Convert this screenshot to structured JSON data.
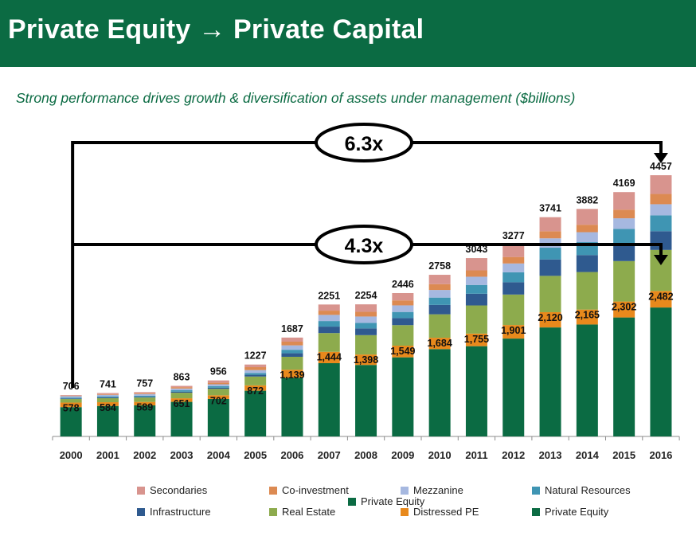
{
  "header": {
    "title": "Private Equity → Private Capital"
  },
  "subtitle": "Strong performance drives growth & diversification of assets under management ($billions)",
  "chart_data": {
    "type": "bar",
    "stacked": true,
    "categories": [
      "2000",
      "2001",
      "2002",
      "2003",
      "2004",
      "2005",
      "2006",
      "2007",
      "2008",
      "2009",
      "2010",
      "2011",
      "2012",
      "2013",
      "2014",
      "2015",
      "2016"
    ],
    "totals": [
      706,
      741,
      757,
      863,
      956,
      1227,
      1687,
      2251,
      2254,
      2446,
      2758,
      3043,
      3277,
      3741,
      3882,
      4169,
      4457
    ],
    "total_labels": [
      "706",
      "741",
      "757",
      "863",
      "956",
      "1227",
      "1687",
      "2251",
      "2254",
      "2446",
      "2758",
      "3043",
      "3277",
      "3741",
      "3882",
      "4169",
      "4457"
    ],
    "pe_labels": [
      "578",
      "584",
      "589",
      "651",
      "702",
      "872",
      "1,139",
      "1,444",
      "1,398",
      "1,549",
      "1,684",
      "1,755",
      "1,901",
      "2,120",
      "2,165",
      "2,302",
      "2,482"
    ],
    "series": [
      {
        "name": "Private Equity",
        "color": "#0b6b43",
        "values": [
          500,
          520,
          530,
          590,
          640,
          780,
          1000,
          1250,
          1220,
          1350,
          1490,
          1540,
          1670,
          1860,
          1910,
          2030,
          2200
        ]
      },
      {
        "name": "Distressed PE",
        "color": "#e8891c",
        "values": [
          78,
          64,
          59,
          61,
          62,
          92,
          139,
          194,
          178,
          199,
          194,
          215,
          231,
          260,
          255,
          272,
          282
        ]
      },
      {
        "name": "Real Estate",
        "color": "#8dab4d",
        "values": [
          60,
          70,
          75,
          95,
          110,
          150,
          220,
          320,
          330,
          350,
          400,
          480,
          520,
          620,
          640,
          690,
          700
        ]
      },
      {
        "name": "Infrastructure",
        "color": "#2f5a8f",
        "values": [
          10,
          12,
          12,
          18,
          20,
          30,
          60,
          110,
          115,
          120,
          160,
          200,
          210,
          280,
          290,
          300,
          320
        ]
      },
      {
        "name": "Natural Resources",
        "color": "#3f95b3",
        "values": [
          15,
          18,
          20,
          24,
          26,
          30,
          60,
          95,
          95,
          105,
          125,
          150,
          170,
          200,
          220,
          250,
          270
        ]
      },
      {
        "name": "Mezzanine",
        "color": "#a6b8e0",
        "values": [
          25,
          26,
          27,
          30,
          32,
          50,
          75,
          105,
          108,
          112,
          130,
          140,
          150,
          160,
          170,
          180,
          190
        ]
      },
      {
        "name": "Co-investment",
        "color": "#dc8a52",
        "values": [
          8,
          12,
          14,
          22,
          26,
          50,
          63,
          72,
          80,
          85,
          99,
          108,
          111,
          121,
          127,
          147,
          175
        ]
      },
      {
        "name": "Secondaries",
        "color": "#d8948e",
        "values": [
          10,
          19,
          20,
          23,
          40,
          45,
          70,
          105,
          128,
          125,
          160,
          210,
          215,
          240,
          270,
          300,
          320
        ]
      }
    ],
    "legend_extra": "Private Equity",
    "ylim": [
      0,
      4800
    ],
    "annotations": [
      {
        "label": "6.3x",
        "from": "2000",
        "to": "2016"
      },
      {
        "label": "4.3x",
        "from": "2000",
        "to": "2016"
      }
    ]
  },
  "legend": {
    "items": [
      {
        "name": "Secondaries",
        "color": "#d8948e"
      },
      {
        "name": "Co-investment",
        "color": "#dc8a52"
      },
      {
        "name": "Mezzanine",
        "color": "#a6b8e0"
      },
      {
        "name": "Natural Resources",
        "color": "#3f95b3"
      },
      {
        "name": "Infrastructure",
        "color": "#2f5a8f"
      },
      {
        "name": "Real Estate",
        "color": "#8dab4d"
      },
      {
        "name": "Distressed PE",
        "color": "#e8891c"
      },
      {
        "name": "Private Equity",
        "color": "#0b6b43"
      }
    ],
    "overlap_label": "Private Equity"
  }
}
